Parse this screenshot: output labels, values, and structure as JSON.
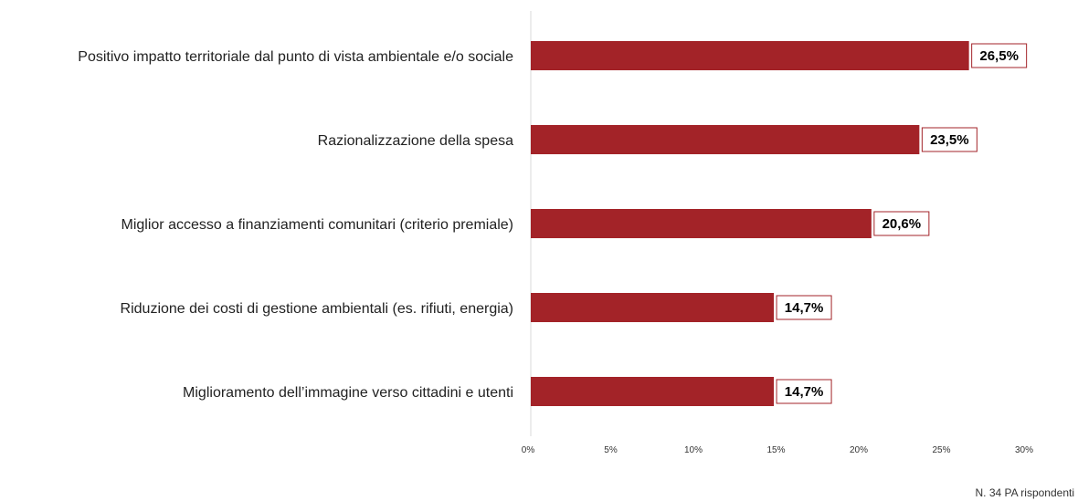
{
  "chart_data": {
    "type": "bar",
    "orientation": "horizontal",
    "categories": [
      "Positivo impatto territoriale dal punto di vista ambientale e/o sociale",
      "Razionalizzazione della spesa",
      "Miglior accesso a finanziamenti comunitari (criterio premiale)",
      "Riduzione dei costi di gestione ambientali (es. rifiuti, energia)",
      "Miglioramento dell’immagine verso cittadini e utenti"
    ],
    "values": [
      26.5,
      23.5,
      20.6,
      14.7,
      14.7
    ],
    "value_labels": [
      "26,5%",
      "23,5%",
      "20,6%",
      "14,7%",
      "14,7%"
    ],
    "xlim": [
      0,
      30
    ],
    "xticks": [
      0,
      5,
      10,
      15,
      20,
      25,
      30
    ],
    "xtick_labels": [
      "0%",
      "5%",
      "10%",
      "15%",
      "20%",
      "25%",
      "30%"
    ],
    "bar_color": "#a32328",
    "label_border_color": "#a32328",
    "grid": false,
    "legend": "none"
  },
  "note": "N. 34 PA rispondenti"
}
